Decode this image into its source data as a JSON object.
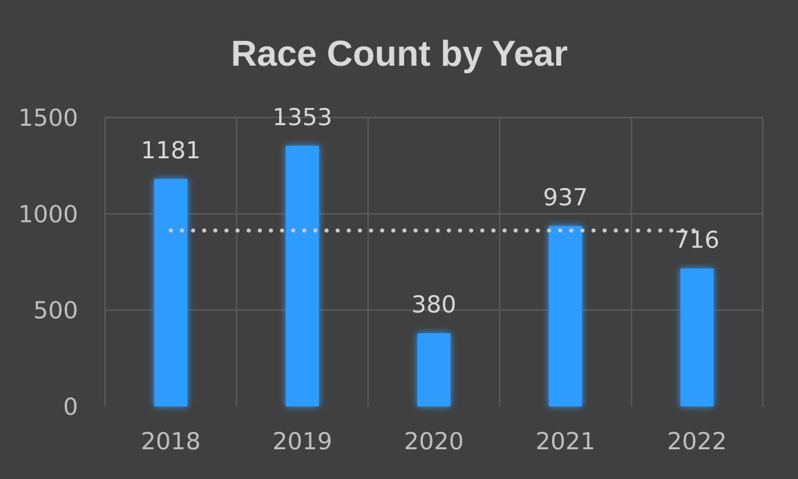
{
  "chart_data": {
    "type": "bar",
    "title": "Race Count by Year",
    "categories": [
      "2018",
      "2019",
      "2020",
      "2021",
      "2022"
    ],
    "values": [
      1181,
      1353,
      380,
      937,
      716
    ],
    "data_labels": [
      "1181",
      "1353",
      "380",
      "937",
      "716"
    ],
    "y_ticks": [
      0,
      500,
      1000,
      1500
    ],
    "y_tick_labels": [
      "0",
      "500",
      "1000",
      "1500"
    ],
    "ylim": [
      0,
      1500
    ],
    "average_line": 913.4,
    "grid": true,
    "xlabel": "",
    "ylabel": "",
    "colors": {
      "bar": "#2e9bff",
      "bar_glow": "#1f8bff",
      "background": "#404040",
      "grid": "#5a5a5a",
      "average_line": "#c8c8c8"
    }
  }
}
